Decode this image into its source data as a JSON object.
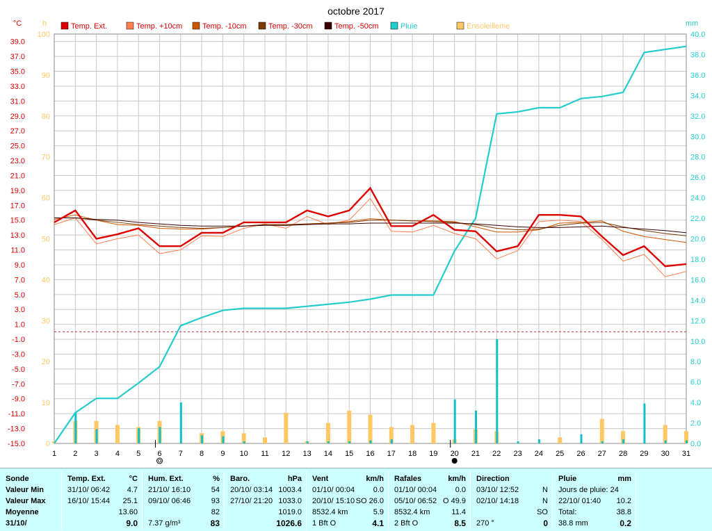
{
  "chart_data": {
    "type": "line",
    "title": "octobre 2017",
    "left_unit": "°C",
    "mid_unit": "h",
    "right_unit": "mm",
    "x": [
      1,
      2,
      3,
      4,
      5,
      6,
      7,
      8,
      9,
      10,
      11,
      12,
      13,
      14,
      15,
      16,
      17,
      18,
      19,
      20,
      21,
      22,
      23,
      24,
      25,
      26,
      27,
      28,
      29,
      30,
      31
    ],
    "temp_ylim": [
      -15,
      40
    ],
    "temp_ticks": [
      "39.0",
      "37.0",
      "35.0",
      "33.0",
      "31.0",
      "29.0",
      "27.0",
      "25.0",
      "23.0",
      "21.0",
      "19.0",
      "17.0",
      "15.0",
      "13.0",
      "11.0",
      "9.0",
      "7.0",
      "5.0",
      "3.0",
      "1.0",
      "-1.0",
      "-3.0",
      "-5.0",
      "-7.0",
      "-9.0",
      "-11.0",
      "-13.0",
      "-15.0"
    ],
    "hour_ylim": [
      0,
      100
    ],
    "hour_ticks": [
      "100",
      "90",
      "80",
      "70",
      "60",
      "50",
      "40",
      "30",
      "20",
      "10",
      "0"
    ],
    "rain_ylim": [
      0,
      40
    ],
    "rain_ticks": [
      "40.0",
      "38.0",
      "36.0",
      "34.0",
      "32.0",
      "30.0",
      "28.0",
      "26.0",
      "24.0",
      "22.0",
      "20.0",
      "18.0",
      "16.0",
      "14.0",
      "12.0",
      "10.0",
      "8.0",
      "6.0",
      "4.0",
      "2.0",
      "0.0"
    ],
    "xlabels": [
      "1",
      "2",
      "3",
      "4",
      "5",
      "6",
      "7",
      "8",
      "9",
      "10",
      "11",
      "12",
      "13",
      "14",
      "15",
      "16",
      "17",
      "18",
      "19",
      "20",
      "21",
      "22",
      "23",
      "24",
      "25",
      "26",
      "27",
      "28",
      "29",
      "30",
      "31"
    ],
    "legend": [
      {
        "name": "Temp. Ext.",
        "color": "#dd0000",
        "text_color": "#dd0000"
      },
      {
        "name": "Temp. +10cm",
        "color": "#ff7f50",
        "text_color": "#dd0000"
      },
      {
        "name": "Temp. -10cm",
        "color": "#cc5500",
        "text_color": "#dd0000"
      },
      {
        "name": "Temp. -30cm",
        "color": "#7a3a00",
        "text_color": "#dd0000"
      },
      {
        "name": "Temp. -50cm",
        "color": "#3a0000",
        "text_color": "#dd0000"
      },
      {
        "name": "Pluie",
        "color": "#22cccc",
        "text_color": "#22cccc"
      },
      {
        "name": "Ensoleilleme",
        "color": "#ffc864",
        "text_color": "#ffc864"
      }
    ],
    "series": [
      {
        "name": "Temp. Ext.",
        "color": "#dd0000",
        "width": 2.4,
        "values": [
          14.7,
          16.3,
          12.5,
          13.1,
          13.9,
          11.5,
          11.5,
          13.3,
          13.3,
          14.7,
          14.7,
          14.7,
          16.3,
          15.5,
          16.3,
          19.3,
          14.2,
          14.2,
          15.7,
          13.7,
          13.5,
          10.8,
          11.5,
          15.7,
          15.7,
          15.5,
          12.8,
          10.3,
          11.5,
          8.8,
          9.1
        ]
      },
      {
        "name": "Temp. +10cm",
        "color": "#ff7f50",
        "width": 1,
        "values": [
          14.4,
          15.3,
          11.8,
          12.5,
          13.0,
          10.5,
          11.0,
          12.9,
          12.8,
          13.9,
          14.5,
          13.9,
          15.5,
          14.4,
          15.0,
          17.9,
          13.5,
          13.4,
          14.3,
          13.2,
          12.5,
          9.8,
          10.9,
          14.8,
          15.0,
          14.8,
          12.4,
          9.5,
          10.4,
          7.4,
          8.1
        ]
      },
      {
        "name": "Temp. -10cm",
        "color": "#cc5500",
        "width": 1,
        "values": [
          15.1,
          15.7,
          15.0,
          14.4,
          14.3,
          13.9,
          13.8,
          13.8,
          14.0,
          14.2,
          14.4,
          14.3,
          14.5,
          14.6,
          14.8,
          15.2,
          15.0,
          14.9,
          14.9,
          14.8,
          14.1,
          13.4,
          13.4,
          13.7,
          14.6,
          14.7,
          14.9,
          13.5,
          12.8,
          12.4,
          12.0
        ]
      },
      {
        "name": "Temp. -30cm",
        "color": "#7a3a00",
        "width": 1,
        "values": [
          15.3,
          15.3,
          15.0,
          14.7,
          14.4,
          14.2,
          14.0,
          13.9,
          14.0,
          14.2,
          14.4,
          14.4,
          14.5,
          14.6,
          14.7,
          15.0,
          15.0,
          14.9,
          14.8,
          14.7,
          14.4,
          13.9,
          13.7,
          13.8,
          14.3,
          14.6,
          14.7,
          14.1,
          13.6,
          13.2,
          12.9
        ]
      },
      {
        "name": "Temp. -50cm",
        "color": "#3a0000",
        "width": 1,
        "values": [
          15.3,
          15.3,
          15.1,
          15.0,
          14.7,
          14.5,
          14.3,
          14.2,
          14.2,
          14.2,
          14.3,
          14.3,
          14.4,
          14.5,
          14.5,
          14.6,
          14.6,
          14.6,
          14.6,
          14.6,
          14.5,
          14.3,
          14.1,
          14.0,
          14.0,
          14.1,
          14.2,
          14.0,
          13.8,
          13.6,
          13.3
        ]
      }
    ],
    "rain_cumul": [
      0.0,
      3.0,
      4.4,
      4.4,
      5.9,
      7.5,
      11.5,
      12.3,
      13.0,
      13.2,
      13.2,
      13.2,
      13.4,
      13.6,
      13.8,
      14.1,
      14.5,
      14.5,
      14.5,
      18.8,
      22.0,
      32.2,
      32.4,
      32.8,
      32.8,
      33.7,
      33.9,
      34.3,
      38.2,
      38.5,
      38.8
    ],
    "rain_daily": [
      0.0,
      3.0,
      1.4,
      0.0,
      1.5,
      1.6,
      4.0,
      0.8,
      0.7,
      0.2,
      0.0,
      0.0,
      0.2,
      0.2,
      0.2,
      0.3,
      0.4,
      0.0,
      0.0,
      4.3,
      3.2,
      10.2,
      0.2,
      0.4,
      0.0,
      0.9,
      0.2,
      0.4,
      3.9,
      0.3,
      0.3
    ],
    "sunshine": [
      0.5,
      5.5,
      5.5,
      4.5,
      4.0,
      5.5,
      0.0,
      2.5,
      3.0,
      2.5,
      1.5,
      7.5,
      0.5,
      5.0,
      8.0,
      7.0,
      4.0,
      4.5,
      5.0,
      1.0,
      3.5,
      3.0,
      0.0,
      0.0,
      1.5,
      0.0,
      6.0,
      3.0,
      0.0,
      4.5,
      3.0
    ],
    "reference_line_temp": 0.0,
    "colors": {
      "rain": "#22cccc",
      "sun": "#ffc864",
      "rain_bar": "#10c0c8",
      "ref": "#cc3333",
      "grid": "#c8c8c8",
      "temp_axis": "#dd0000",
      "hour_axis": "#ffc864",
      "rain_axis": "#22cccc"
    },
    "markers": [
      {
        "day": 6,
        "symbol": "new-moon-outline"
      },
      {
        "day": 20,
        "symbol": "full-moon"
      }
    ]
  },
  "stats": {
    "sonde": {
      "title": "Sonde",
      "rows": [
        "Valeur Min",
        "Valeur Max",
        "Moyenne"
      ],
      "last": "31/10/"
    },
    "temp": {
      "title": "Temp. Ext.",
      "unit": "°C",
      "rows": [
        [
          "31/10/  06:42",
          "4.7"
        ],
        [
          "16/10/  15:44",
          "25.1"
        ],
        [
          "",
          "13.60"
        ]
      ],
      "last": [
        "",
        "9.0"
      ]
    },
    "hum": {
      "title": "Hum. Ext.",
      "unit": "%",
      "rows": [
        [
          "21/10/  16:10",
          "54"
        ],
        [
          "09/10/  06:46",
          "93"
        ],
        [
          "",
          "82"
        ]
      ],
      "last": [
        "7.37 g/m³",
        "83"
      ]
    },
    "baro": {
      "title": "Baro.",
      "unit": "hPa",
      "rows": [
        [
          "20/10/  03:14",
          "1003.4"
        ],
        [
          "27/10/  21:20",
          "1033.0"
        ],
        [
          "",
          "1019.0"
        ]
      ],
      "last": [
        "",
        "1026.6"
      ]
    },
    "vent": {
      "title": "Vent",
      "unit": "km/h",
      "rows": [
        [
          "01/10/  00:04",
          "0.0"
        ],
        [
          "20/10/  15:10",
          "SO 26.0"
        ],
        [
          "8532.4 km",
          "5.9"
        ]
      ],
      "last": [
        "1 Bft O",
        "4.1"
      ]
    },
    "rafales": {
      "title": "Rafales",
      "unit": "km/h",
      "rows": [
        [
          "01/10/  00:04",
          "0.0"
        ],
        [
          "05/10/  06:52",
          "O 49.9"
        ],
        [
          "8532.4 km",
          "11.4"
        ]
      ],
      "last": [
        "2 Bft O",
        "8.5"
      ]
    },
    "direction": {
      "title": "Direction",
      "unit": "",
      "rows": [
        [
          "03/10/  12:52",
          "N"
        ],
        [
          "02/10/  14:18",
          "N"
        ],
        [
          "",
          "SO"
        ]
      ],
      "last": [
        "270 °",
        "0"
      ]
    },
    "pluie": {
      "title": "Pluie",
      "unit": "mm",
      "rows": [
        [
          "Jours de pluie: 24",
          ""
        ],
        [
          "22/10/  01:40",
          "10.2"
        ],
        [
          "Total:",
          "38.8"
        ]
      ],
      "last": [
        "38.8 mm",
        "0.2"
      ]
    }
  }
}
